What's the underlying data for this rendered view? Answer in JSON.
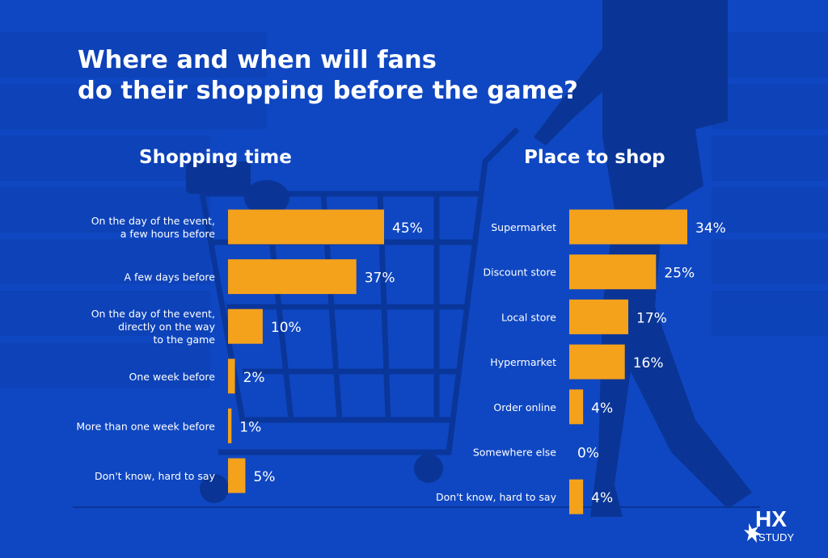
{
  "title_line1": "Where and when will fans",
  "title_line2": "do their shopping before the game?",
  "colors": {
    "background": "#0f47c2",
    "bar": "#f4a11c",
    "text": "#ffffff"
  },
  "logo": {
    "mark": "HX",
    "sub": "STUDY"
  },
  "chart_data": [
    {
      "type": "bar",
      "orientation": "horizontal",
      "title": "Shopping time",
      "categories": [
        [
          "On the day of the event,",
          "a few hours before"
        ],
        [
          "A few days before"
        ],
        [
          "On the day of the event,",
          "directly on the way",
          "to the game"
        ],
        [
          "One week before"
        ],
        [
          "More than one week before"
        ],
        [
          "Don't know, hard to say"
        ]
      ],
      "values": [
        45,
        37,
        10,
        2,
        1,
        5
      ],
      "value_labels": [
        "45%",
        "37%",
        "10%",
        "2%",
        "1%",
        "5%"
      ],
      "unit": "%"
    },
    {
      "type": "bar",
      "orientation": "horizontal",
      "title": "Place to shop",
      "categories": [
        [
          "Supermarket"
        ],
        [
          "Discount store"
        ],
        [
          "Local store"
        ],
        [
          "Hypermarket"
        ],
        [
          "Order online"
        ],
        [
          "Somewhere else"
        ],
        [
          "Don't know, hard to say"
        ]
      ],
      "values": [
        34,
        25,
        17,
        16,
        4,
        0,
        4
      ],
      "value_labels": [
        "34%",
        "25%",
        "17%",
        "16%",
        "4%",
        "0%",
        "4%"
      ],
      "unit": "%"
    }
  ]
}
